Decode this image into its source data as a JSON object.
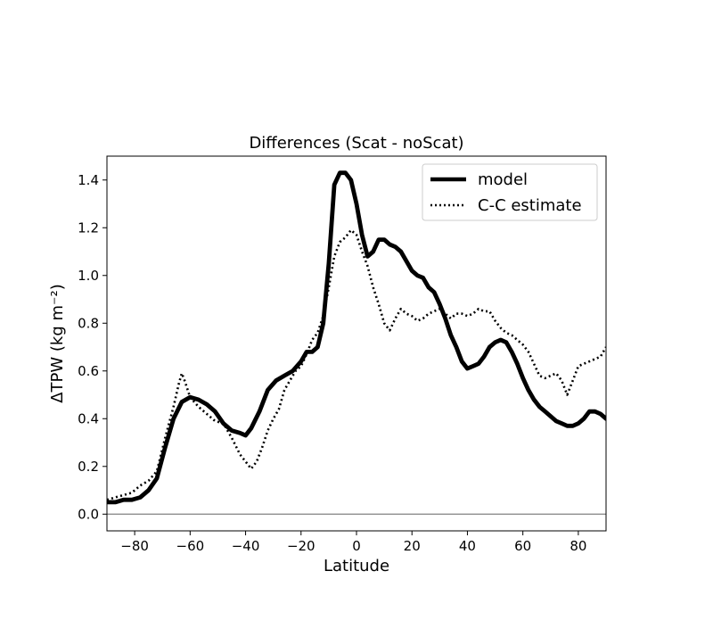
{
  "chart_data": {
    "type": "line",
    "title": "Differences (Scat - noScat)",
    "xlabel": "Latitude",
    "ylabel": "ΔTPW (kg m⁻²)",
    "xlim": [
      -90,
      90
    ],
    "ylim": [
      -0.07,
      1.5
    ],
    "xticks": [
      -80,
      -60,
      -40,
      -20,
      0,
      20,
      40,
      60,
      80
    ],
    "xtick_labels": [
      "−80",
      "−60",
      "−40",
      "−20",
      "0",
      "20",
      "40",
      "60",
      "80"
    ],
    "yticks": [
      0.0,
      0.2,
      0.4,
      0.6,
      0.8,
      1.0,
      1.2,
      1.4
    ],
    "ytick_labels": [
      "0.0",
      "0.2",
      "0.4",
      "0.6",
      "0.8",
      "1.0",
      "1.2",
      "1.4"
    ],
    "reference_line": {
      "y": 0.0,
      "color": "#808080"
    },
    "grid": false,
    "legend_position": "upper right",
    "series": [
      {
        "name": "model",
        "style": "solid",
        "color": "#000000",
        "x": [
          -90,
          -87,
          -84,
          -81,
          -78,
          -75,
          -72,
          -69,
          -66,
          -63,
          -60,
          -57,
          -54,
          -51,
          -48,
          -45,
          -42,
          -40,
          -38,
          -35,
          -32,
          -29,
          -26,
          -23,
          -20,
          -18,
          -16,
          -14,
          -12,
          -10,
          -8,
          -6,
          -4,
          -2,
          0,
          2,
          4,
          6,
          8,
          10,
          12,
          14,
          16,
          18,
          20,
          22,
          24,
          26,
          28,
          30,
          32,
          34,
          36,
          38,
          40,
          42,
          44,
          46,
          48,
          50,
          52,
          54,
          56,
          58,
          60,
          62,
          64,
          66,
          68,
          70,
          72,
          74,
          76,
          78,
          80,
          82,
          84,
          86,
          88,
          90
        ],
        "y": [
          0.05,
          0.05,
          0.06,
          0.06,
          0.07,
          0.1,
          0.15,
          0.28,
          0.4,
          0.47,
          0.49,
          0.48,
          0.46,
          0.43,
          0.38,
          0.35,
          0.34,
          0.33,
          0.36,
          0.43,
          0.52,
          0.56,
          0.58,
          0.6,
          0.64,
          0.68,
          0.68,
          0.7,
          0.8,
          1.05,
          1.38,
          1.43,
          1.43,
          1.4,
          1.3,
          1.17,
          1.08,
          1.1,
          1.15,
          1.15,
          1.13,
          1.12,
          1.1,
          1.06,
          1.02,
          1.0,
          0.99,
          0.95,
          0.93,
          0.88,
          0.82,
          0.75,
          0.7,
          0.64,
          0.61,
          0.62,
          0.63,
          0.66,
          0.7,
          0.72,
          0.73,
          0.72,
          0.68,
          0.63,
          0.57,
          0.52,
          0.48,
          0.45,
          0.43,
          0.41,
          0.39,
          0.38,
          0.37,
          0.37,
          0.38,
          0.4,
          0.43,
          0.43,
          0.42,
          0.4
        ]
      },
      {
        "name": "C-C estimate",
        "style": "dotted",
        "color": "#000000",
        "x": [
          -90,
          -87,
          -84,
          -81,
          -78,
          -75,
          -72,
          -69,
          -66,
          -64,
          -63,
          -62,
          -60,
          -57,
          -54,
          -51,
          -48,
          -45,
          -42,
          -40,
          -38,
          -36,
          -34,
          -32,
          -30,
          -28,
          -26,
          -24,
          -22,
          -20,
          -18,
          -16,
          -14,
          -12,
          -10,
          -8,
          -6,
          -4,
          -2,
          0,
          2,
          4,
          6,
          8,
          10,
          12,
          14,
          16,
          18,
          20,
          22,
          24,
          26,
          28,
          30,
          32,
          34,
          36,
          38,
          40,
          42,
          44,
          46,
          48,
          50,
          52,
          54,
          56,
          58,
          60,
          62,
          64,
          66,
          68,
          70,
          72,
          74,
          76,
          78,
          80,
          82,
          84,
          86,
          88,
          90
        ],
        "y": [
          0.06,
          0.07,
          0.08,
          0.09,
          0.12,
          0.14,
          0.18,
          0.32,
          0.45,
          0.55,
          0.59,
          0.56,
          0.49,
          0.45,
          0.42,
          0.39,
          0.38,
          0.32,
          0.25,
          0.22,
          0.19,
          0.22,
          0.28,
          0.35,
          0.4,
          0.44,
          0.52,
          0.56,
          0.6,
          0.62,
          0.67,
          0.73,
          0.76,
          0.83,
          0.95,
          1.08,
          1.14,
          1.16,
          1.19,
          1.17,
          1.1,
          1.04,
          0.95,
          0.88,
          0.8,
          0.77,
          0.82,
          0.86,
          0.84,
          0.83,
          0.81,
          0.82,
          0.84,
          0.85,
          0.86,
          0.84,
          0.82,
          0.84,
          0.84,
          0.83,
          0.84,
          0.86,
          0.85,
          0.85,
          0.81,
          0.78,
          0.76,
          0.75,
          0.73,
          0.71,
          0.68,
          0.63,
          0.58,
          0.57,
          0.58,
          0.59,
          0.56,
          0.5,
          0.56,
          0.62,
          0.63,
          0.64,
          0.65,
          0.66,
          0.7
        ]
      }
    ]
  }
}
